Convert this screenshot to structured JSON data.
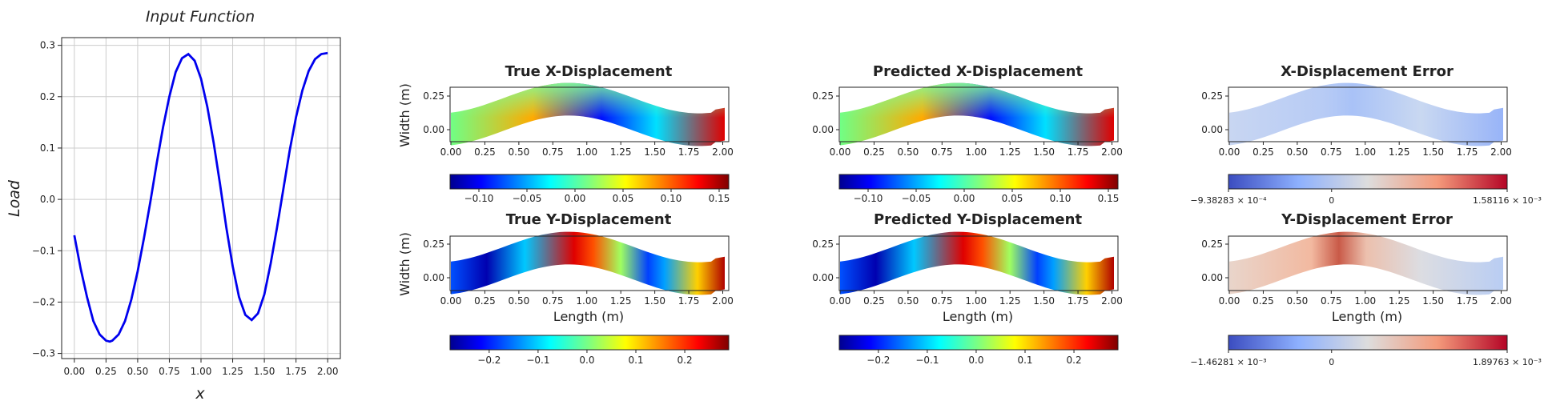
{
  "chart_data": [
    {
      "type": "line",
      "title": "Input Function",
      "xlabel": "x",
      "ylabel": "Load",
      "xlim": [
        0.0,
        2.0
      ],
      "ylim": [
        -0.3,
        0.3
      ],
      "xticks": [
        "0.00",
        "0.25",
        "0.50",
        "0.75",
        "1.00",
        "1.25",
        "1.50",
        "1.75",
        "2.00"
      ],
      "yticks": [
        "−0.3",
        "−0.2",
        "−0.1",
        "0.0",
        "0.1",
        "0.2",
        "0.3"
      ],
      "grid": true,
      "line_color": "#0000ee",
      "x": [
        0.0,
        0.05,
        0.1,
        0.15,
        0.2,
        0.25,
        0.28,
        0.3,
        0.35,
        0.4,
        0.45,
        0.5,
        0.55,
        0.6,
        0.65,
        0.7,
        0.75,
        0.8,
        0.85,
        0.9,
        0.95,
        1.0,
        1.05,
        1.1,
        1.15,
        1.2,
        1.25,
        1.3,
        1.35,
        1.4,
        1.45,
        1.5,
        1.55,
        1.6,
        1.65,
        1.7,
        1.75,
        1.8,
        1.85,
        1.9,
        1.95,
        2.0
      ],
      "values": [
        -0.07,
        -0.135,
        -0.19,
        -0.237,
        -0.263,
        -0.275,
        -0.277,
        -0.275,
        -0.263,
        -0.237,
        -0.195,
        -0.14,
        -0.075,
        -0.005,
        0.07,
        0.14,
        0.2,
        0.248,
        0.275,
        0.283,
        0.27,
        0.235,
        0.18,
        0.11,
        0.03,
        -0.055,
        -0.13,
        -0.19,
        -0.225,
        -0.235,
        -0.222,
        -0.185,
        -0.125,
        -0.055,
        0.02,
        0.095,
        0.16,
        0.212,
        0.25,
        0.273,
        0.283,
        0.285
      ]
    },
    {
      "type": "heatmap",
      "title": "True X-Displacement",
      "ylabel": "Width (m)",
      "xticks": [
        "0.00",
        "0.25",
        "0.50",
        "0.75",
        "1.00",
        "1.25",
        "1.50",
        "1.75",
        "2.00"
      ],
      "yticks": [
        "0.25",
        "0.00"
      ],
      "colormap": "jet",
      "colorbar_ticks": [
        "−0.10",
        "−0.05",
        "0.00",
        "0.05",
        "0.10",
        "0.15"
      ],
      "colorbar_range": [
        -0.13,
        0.16
      ]
    },
    {
      "type": "heatmap",
      "title": "Predicted X-Displacement",
      "xticks": [
        "0.00",
        "0.25",
        "0.50",
        "0.75",
        "1.00",
        "1.25",
        "1.50",
        "1.75",
        "2.00"
      ],
      "yticks": [
        "0.25",
        "0.00"
      ],
      "colormap": "jet",
      "colorbar_ticks": [
        "−0.10",
        "−0.05",
        "0.00",
        "0.05",
        "0.10",
        "0.15"
      ],
      "colorbar_range": [
        -0.13,
        0.16
      ]
    },
    {
      "type": "heatmap",
      "title": "X-Displacement Error",
      "xticks": [
        "0.00",
        "0.25",
        "0.50",
        "0.75",
        "1.00",
        "1.25",
        "1.50",
        "1.75",
        "2.00"
      ],
      "yticks": [
        "0.25",
        "0.00"
      ],
      "colormap": "coolwarm",
      "colorbar_min_label": "−9.38283 × 10⁻⁴",
      "colorbar_mid_label": "0",
      "colorbar_max_label": "1.58116 × 10⁻³"
    },
    {
      "type": "heatmap",
      "title": "True Y-Displacement",
      "xlabel": "Length (m)",
      "ylabel": "Width (m)",
      "xticks": [
        "0.00",
        "0.25",
        "0.50",
        "0.75",
        "1.00",
        "1.25",
        "1.50",
        "1.75",
        "2.00"
      ],
      "yticks": [
        "0.25",
        "0.00"
      ],
      "colormap": "jet",
      "colorbar_ticks": [
        "−0.2",
        "−0.1",
        "0.0",
        "0.1",
        "0.2"
      ],
      "colorbar_range": [
        -0.28,
        0.29
      ]
    },
    {
      "type": "heatmap",
      "title": "Predicted Y-Displacement",
      "xlabel": "Length (m)",
      "xticks": [
        "0.00",
        "0.25",
        "0.50",
        "0.75",
        "1.00",
        "1.25",
        "1.50",
        "1.75",
        "2.00"
      ],
      "yticks": [
        "0.25",
        "0.00"
      ],
      "colormap": "jet",
      "colorbar_ticks": [
        "−0.2",
        "−0.1",
        "0.0",
        "0.1",
        "0.2"
      ],
      "colorbar_range": [
        -0.28,
        0.29
      ]
    },
    {
      "type": "heatmap",
      "title": "Y-Displacement Error",
      "xlabel": "Length (m)",
      "xticks": [
        "0.00",
        "0.25",
        "0.50",
        "0.75",
        "1.00",
        "1.25",
        "1.50",
        "1.75",
        "2.00"
      ],
      "yticks": [
        "0.25",
        "0.00"
      ],
      "colormap": "coolwarm",
      "colorbar_min_label": "−1.46281 × 10⁻³",
      "colorbar_mid_label": "0",
      "colorbar_max_label": "1.89763 × 10⁻³"
    }
  ]
}
